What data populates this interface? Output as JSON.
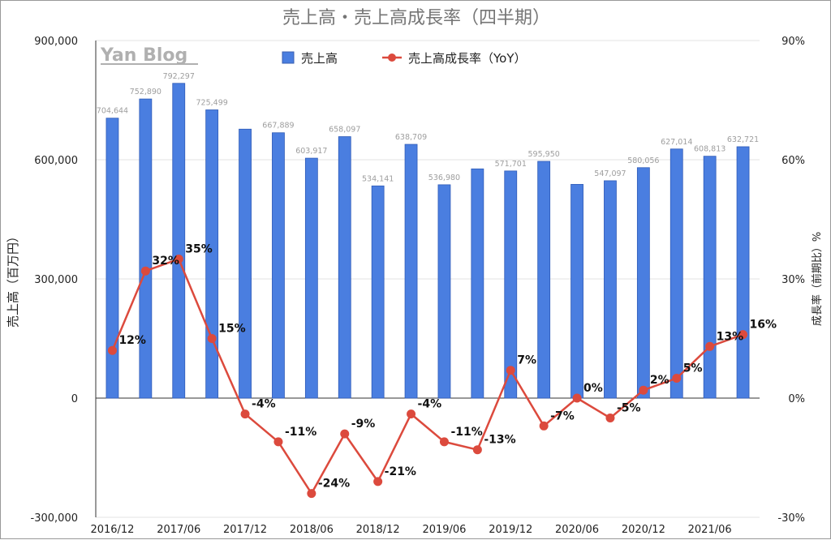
{
  "chart_data": {
    "type": "bar",
    "title": "売上高・売上高成長率（四半期）",
    "watermark": "Yan Blog",
    "ylabel": "売上高（百万円）",
    "y2label": "成長率（前期比）%",
    "ylim": [
      -300000,
      900000
    ],
    "y2lim": [
      -30,
      90
    ],
    "y_ticks": [
      "-300,000",
      "0",
      "300,000",
      "600,000",
      "900,000"
    ],
    "y2_ticks": [
      "-30%",
      "0%",
      "30%",
      "60%",
      "90%"
    ],
    "x_ticks": [
      "2016/12",
      "2017/06",
      "2017/12",
      "2018/06",
      "2018/12",
      "2019/06",
      "2019/12",
      "2020/06",
      "2020/12",
      "2021/06"
    ],
    "legend_position": "top-center",
    "grid": true,
    "colors": {
      "bar": "#4a7ee0",
      "line": "#dc4a3d",
      "grid": "#e3e3e3"
    },
    "categories": [
      "2016/12",
      "2017/03",
      "2017/06",
      "2017/09",
      "2017/12",
      "2018/03",
      "2018/06",
      "2018/09",
      "2018/12",
      "2019/03",
      "2019/06",
      "2019/09",
      "2019/12",
      "2020/03",
      "2020/06",
      "2020/09",
      "2020/12",
      "2021/03",
      "2021/06",
      "2021/09"
    ],
    "series": [
      {
        "name": "売上高",
        "kind": "bar",
        "axis": "left",
        "values": [
          704644,
          752890,
          792297,
          725499,
          677000,
          667889,
          603917,
          658097,
          534141,
          638709,
          536980,
          577000,
          571701,
          595950,
          538000,
          547097,
          580056,
          627014,
          608813,
          632721
        ],
        "labels": [
          "704,644",
          "752,890",
          "792,297",
          "725,499",
          "",
          "667,889",
          "603,917",
          "658,097",
          "534,141",
          "638,709",
          "536,980",
          "",
          "571,701",
          "595,950",
          "",
          "547,097",
          "580,056",
          "627,014",
          "608,813",
          "632,721"
        ]
      },
      {
        "name": "売上高成長率（YoY）",
        "kind": "line",
        "axis": "right",
        "values": [
          12,
          32,
          35,
          15,
          -4,
          -11,
          -24,
          -9,
          -21,
          -4,
          -11,
          -13,
          7,
          -7,
          0,
          -5,
          2,
          5,
          13,
          16
        ],
        "labels": [
          "12%",
          "32%",
          "35%",
          "15%",
          "-4%",
          "-11%",
          "-24%",
          "-9%",
          "-21%",
          "-4%",
          "-11%",
          "-13%",
          "7%",
          "-7%",
          "0%",
          "-5%",
          "2%",
          "5%",
          "13%",
          "16%"
        ]
      }
    ]
  }
}
